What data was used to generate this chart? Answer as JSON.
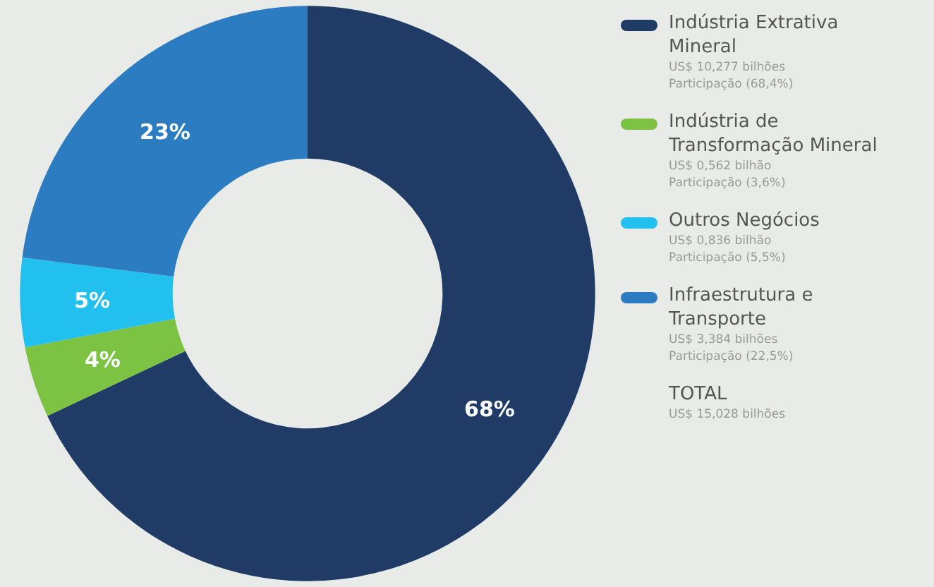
{
  "chart_data": {
    "type": "donut",
    "categories": [
      "Indústria Extrativa Mineral",
      "Indústria de Transformação Mineral",
      "Outros Negócios",
      "Infraestrutura e Transporte"
    ],
    "values": [
      68,
      4,
      5,
      23
    ],
    "value_labels": [
      "68%",
      "4%",
      "5%",
      "23%"
    ],
    "colors": [
      "#1f3b66",
      "#7cc243",
      "#22c0ee",
      "#2b7cc1"
    ],
    "legend": "right",
    "annotations": [
      "US$ 10,277 bilhões",
      "Participação (68,4%)",
      "US$ 0,562 bilhão",
      "Participação (3,6%)",
      "US$ 0,836 bilhão",
      "Participação (5,5%)",
      "US$ 3,384 bilhões",
      "Participação (22,5%)",
      "TOTAL",
      "US$ 15,028 bilhões"
    ]
  }
}
